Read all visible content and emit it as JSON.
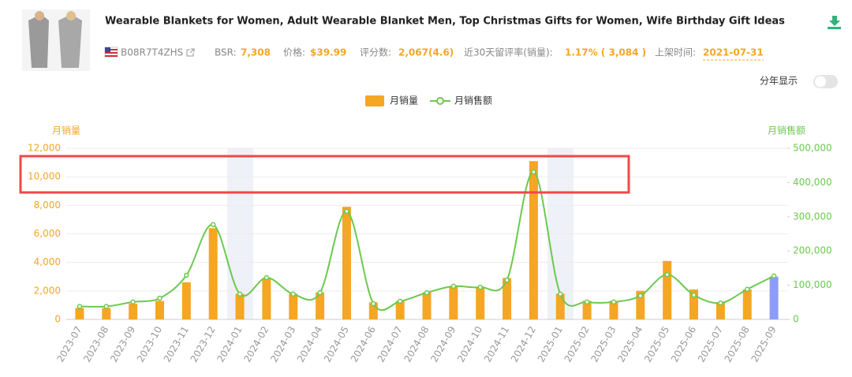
{
  "product": {
    "title": "Wearable Blankets for Women, Adult Wearable Blanket Men, Top Christmas Gifts for Women, Wife Birthday Gift Ideas",
    "asin": "B08R7T4ZHS",
    "stats": [
      {
        "label": "BSR:",
        "value": "7,308"
      },
      {
        "label": "价格:",
        "value": "$39.99"
      },
      {
        "label": "评分数:",
        "value": "2,067(4.6)"
      },
      {
        "label": "近30天留评率(销量):",
        "value": "1.17% ( 3,084 )"
      },
      {
        "label": "上架时间:",
        "value": "2021-07-31"
      }
    ],
    "toggle_label": "分年显示"
  },
  "chart_data": {
    "type": "bar",
    "y_label": "月销量",
    "y2_label": "月销售额",
    "categories": [
      "2023-07",
      "2023-08",
      "2023-09",
      "2023-10",
      "2023-11",
      "2023-12",
      "2024-01",
      "2024-02",
      "2024-03",
      "2024-04",
      "2024-05",
      "2024-06",
      "2024-07",
      "2024-08",
      "2024-09",
      "2024-10",
      "2024-11",
      "2024-12",
      "2025-01",
      "2025-02",
      "2025-03",
      "2025-04",
      "2025-05",
      "2025-06",
      "2025-07",
      "2025-08",
      "2025-09"
    ],
    "series": [
      {
        "name": "月销量",
        "type": "bar",
        "color": "#f5a623",
        "last_color": "#8c9cf8",
        "values": [
          800,
          800,
          1100,
          1300,
          2600,
          6400,
          1800,
          2900,
          1800,
          1900,
          7900,
          1200,
          1300,
          1900,
          2300,
          2300,
          2900,
          11100,
          1800,
          1300,
          1300,
          2000,
          4100,
          2100,
          1200,
          2100,
          3000
        ]
      },
      {
        "name": "月销售额",
        "type": "line",
        "color": "#6cc94f",
        "axis": "y2",
        "values": [
          38000,
          38000,
          51000,
          62000,
          129000,
          277000,
          74000,
          122000,
          74000,
          78000,
          316000,
          46000,
          53000,
          78000,
          97000,
          94000,
          115000,
          431000,
          74000,
          51000,
          51000,
          69000,
          131000,
          71000,
          48000,
          88000,
          127000
        ]
      }
    ],
    "ylim": [
      0,
      12000
    ],
    "yticks": [
      0,
      {
        "value": 2000,
        "label": "2,000"
      },
      {
        "value": 4000,
        "label": "4,000"
      },
      {
        "value": 6000,
        "label": "6,000"
      },
      {
        "value": 8000,
        "label": "8,000"
      },
      {
        "value": 10000,
        "label": "10,000"
      },
      {
        "value": 12000,
        "label": "12,000"
      }
    ],
    "y2lim": [
      0,
      500000
    ],
    "y2ticks": [
      0,
      {
        "value": 100000,
        "label": "100,000"
      },
      {
        "value": 200000,
        "label": "200,000"
      },
      {
        "value": 300000,
        "label": "300,000"
      },
      {
        "value": 400000,
        "label": "400,000"
      },
      {
        "value": 500000,
        "label": "500,000"
      }
    ],
    "grid": true
  }
}
